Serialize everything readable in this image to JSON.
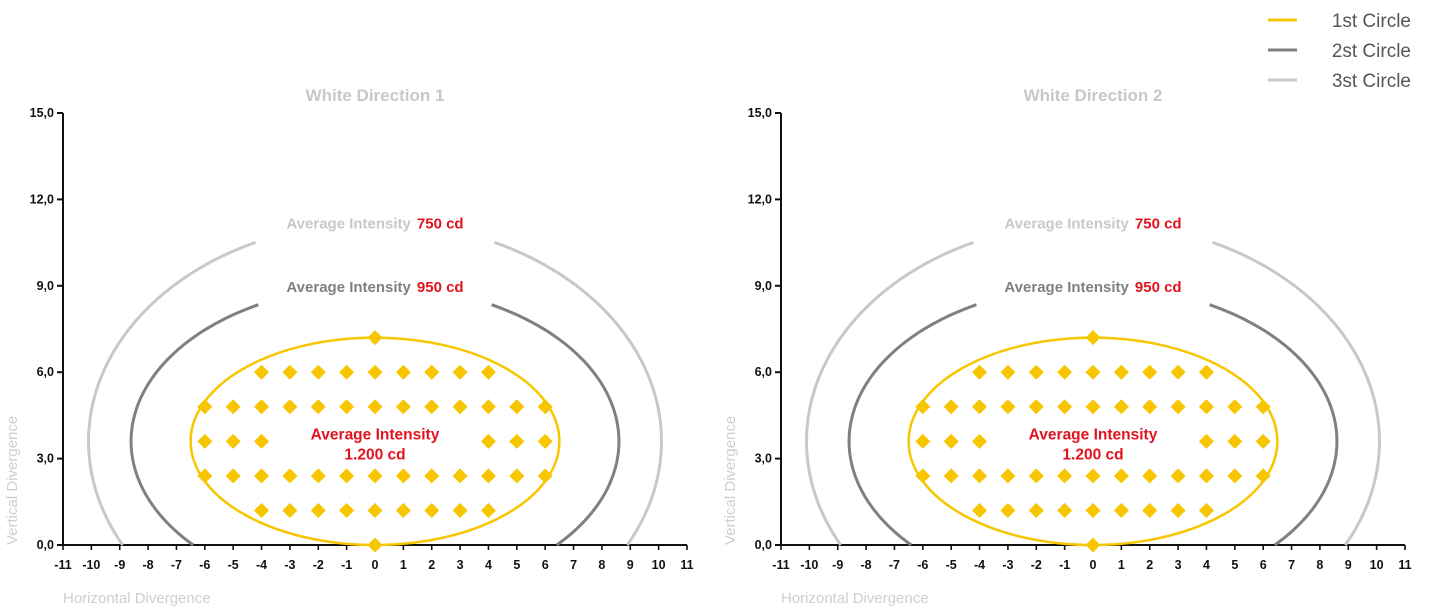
{
  "legend": {
    "items": [
      {
        "label": "1st Circle",
        "color": "#f7c600"
      },
      {
        "label": "2st Circle",
        "color": "#808080"
      },
      {
        "label": "3st Circle",
        "color": "#c8c8c8"
      }
    ]
  },
  "chart_data": [
    {
      "type": "scatter",
      "title": "White Direction 1",
      "xlabel": "Horizontal Divergence",
      "ylabel": "Vertical Divergence",
      "xlim": [
        -11,
        11
      ],
      "ylim": [
        0,
        15
      ],
      "xticks": [
        -11,
        -10,
        -9,
        -8,
        -7,
        -6,
        -5,
        -4,
        -3,
        -2,
        -1,
        0,
        1,
        2,
        3,
        4,
        5,
        6,
        7,
        8,
        9,
        10,
        11
      ],
      "yticks": [
        "0,0",
        "3,0",
        "6,0",
        "9,0",
        "12,0",
        "15,0"
      ],
      "grid": false,
      "annotations": {
        "outer": {
          "label": "Average Intensity",
          "value": "750 cd"
        },
        "middle": {
          "label": "Average Intensity",
          "value": "950 cd"
        },
        "inner": {
          "line1": "Average Intensity",
          "line2": "1.200 cd"
        }
      },
      "curves": {
        "first_circle": {
          "cx": 0,
          "cy": 3.6,
          "rx": 6.5,
          "ry": 3.6
        },
        "second_circle": {
          "cx": 0,
          "cy": 3.6,
          "rx": 8.6,
          "ry": 5.4,
          "x_intercept": 7
        },
        "third_circle": {
          "cx": 0,
          "cy": 3.6,
          "rx": 10.1,
          "ry": 7.6,
          "x_intercept": 9
        }
      },
      "points": [
        [
          0,
          0
        ],
        [
          -4,
          1.2
        ],
        [
          -3,
          1.2
        ],
        [
          -2,
          1.2
        ],
        [
          -1,
          1.2
        ],
        [
          0,
          1.2
        ],
        [
          1,
          1.2
        ],
        [
          2,
          1.2
        ],
        [
          3,
          1.2
        ],
        [
          4,
          1.2
        ],
        [
          -6,
          2.4
        ],
        [
          -5,
          2.4
        ],
        [
          -4,
          2.4
        ],
        [
          -3,
          2.4
        ],
        [
          -2,
          2.4
        ],
        [
          -1,
          2.4
        ],
        [
          0,
          2.4
        ],
        [
          1,
          2.4
        ],
        [
          2,
          2.4
        ],
        [
          3,
          2.4
        ],
        [
          4,
          2.4
        ],
        [
          5,
          2.4
        ],
        [
          6,
          2.4
        ],
        [
          -6,
          3.6
        ],
        [
          -5,
          3.6
        ],
        [
          -4,
          3.6
        ],
        [
          4,
          3.6
        ],
        [
          5,
          3.6
        ],
        [
          6,
          3.6
        ],
        [
          -6,
          4.8
        ],
        [
          -5,
          4.8
        ],
        [
          -4,
          4.8
        ],
        [
          -3,
          4.8
        ],
        [
          -2,
          4.8
        ],
        [
          -1,
          4.8
        ],
        [
          0,
          4.8
        ],
        [
          1,
          4.8
        ],
        [
          2,
          4.8
        ],
        [
          3,
          4.8
        ],
        [
          4,
          4.8
        ],
        [
          5,
          4.8
        ],
        [
          6,
          4.8
        ],
        [
          -4,
          6.0
        ],
        [
          -3,
          6.0
        ],
        [
          -2,
          6.0
        ],
        [
          -1,
          6.0
        ],
        [
          0,
          6.0
        ],
        [
          1,
          6.0
        ],
        [
          2,
          6.0
        ],
        [
          3,
          6.0
        ],
        [
          4,
          6.0
        ],
        [
          0,
          7.2
        ]
      ]
    },
    {
      "type": "scatter",
      "title": "White Direction 2",
      "xlabel": "Horizontal Divergence",
      "ylabel": "Vertical Divergence",
      "xlim": [
        -11,
        11
      ],
      "ylim": [
        0,
        15
      ],
      "xticks": [
        -11,
        -10,
        -9,
        -8,
        -7,
        -6,
        -5,
        -4,
        -3,
        -2,
        -1,
        0,
        1,
        2,
        3,
        4,
        5,
        6,
        7,
        8,
        9,
        10,
        11
      ],
      "yticks": [
        "0,0",
        "3,0",
        "6,0",
        "9,0",
        "12,0",
        "15,0"
      ],
      "grid": false,
      "annotations": {
        "outer": {
          "label": "Average Intensity",
          "value": "750 cd"
        },
        "middle": {
          "label": "Average Intensity",
          "value": "950 cd"
        },
        "inner": {
          "line1": "Average Intensity",
          "line2": "1.200 cd"
        }
      },
      "curves": {
        "first_circle": {
          "cx": 0,
          "cy": 3.6,
          "rx": 6.5,
          "ry": 3.6
        },
        "second_circle": {
          "cx": 0,
          "cy": 3.6,
          "rx": 8.6,
          "ry": 5.4,
          "x_intercept": 7
        },
        "third_circle": {
          "cx": 0,
          "cy": 3.6,
          "rx": 10.1,
          "ry": 7.6,
          "x_intercept": 9
        }
      },
      "points": [
        [
          0,
          0
        ],
        [
          -4,
          1.2
        ],
        [
          -3,
          1.2
        ],
        [
          -2,
          1.2
        ],
        [
          -1,
          1.2
        ],
        [
          0,
          1.2
        ],
        [
          1,
          1.2
        ],
        [
          2,
          1.2
        ],
        [
          3,
          1.2
        ],
        [
          4,
          1.2
        ],
        [
          -6,
          2.4
        ],
        [
          -5,
          2.4
        ],
        [
          -4,
          2.4
        ],
        [
          -3,
          2.4
        ],
        [
          -2,
          2.4
        ],
        [
          -1,
          2.4
        ],
        [
          0,
          2.4
        ],
        [
          1,
          2.4
        ],
        [
          2,
          2.4
        ],
        [
          3,
          2.4
        ],
        [
          4,
          2.4
        ],
        [
          5,
          2.4
        ],
        [
          6,
          2.4
        ],
        [
          -6,
          3.6
        ],
        [
          -5,
          3.6
        ],
        [
          -4,
          3.6
        ],
        [
          4,
          3.6
        ],
        [
          5,
          3.6
        ],
        [
          6,
          3.6
        ],
        [
          -6,
          4.8
        ],
        [
          -5,
          4.8
        ],
        [
          -4,
          4.8
        ],
        [
          -3,
          4.8
        ],
        [
          -2,
          4.8
        ],
        [
          -1,
          4.8
        ],
        [
          0,
          4.8
        ],
        [
          1,
          4.8
        ],
        [
          2,
          4.8
        ],
        [
          3,
          4.8
        ],
        [
          4,
          4.8
        ],
        [
          5,
          4.8
        ],
        [
          6,
          4.8
        ],
        [
          -4,
          6.0
        ],
        [
          -3,
          6.0
        ],
        [
          -2,
          6.0
        ],
        [
          -1,
          6.0
        ],
        [
          0,
          6.0
        ],
        [
          1,
          6.0
        ],
        [
          2,
          6.0
        ],
        [
          3,
          6.0
        ],
        [
          4,
          6.0
        ],
        [
          0,
          7.2
        ]
      ]
    }
  ]
}
